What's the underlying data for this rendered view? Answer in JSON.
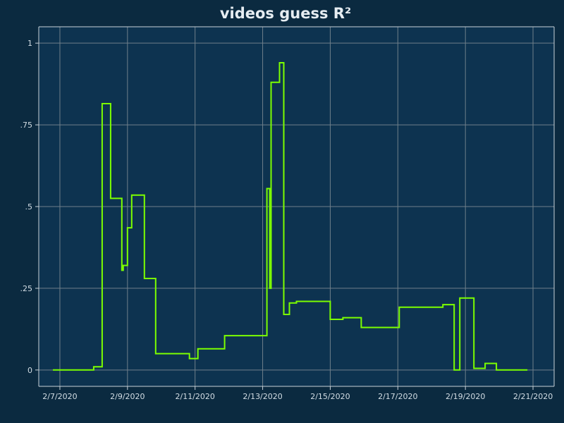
{
  "chart_data": {
    "type": "line",
    "title": "videos guess R²",
    "xlabel": "",
    "ylabel": "",
    "x_axis_type": "date",
    "x_ticks": [
      "2/7/2020",
      "2/9/2020",
      "2/11/2020",
      "2/13/2020",
      "2/15/2020",
      "2/17/2020",
      "2/19/2020",
      "2/21/2020"
    ],
    "y_ticks": [
      0,
      0.25,
      0.5,
      0.75,
      1
    ],
    "y_tick_labels": [
      "0",
      ".25",
      ".5",
      ".75",
      "1"
    ],
    "xlim": [
      "2020-02-06 09:00",
      "2020-02-21 15:00"
    ],
    "ylim": [
      -0.05,
      1.05
    ],
    "grid": true,
    "line_color": "#7cff00",
    "plot_background": "#0d3350",
    "page_background": "#0b2a40",
    "step": "post",
    "series": [
      {
        "name": "",
        "points": [
          [
            "2020-02-06 19:00",
            0
          ],
          [
            "2020-02-08 00:00",
            0.01
          ],
          [
            "2020-02-08 06:00",
            0.815
          ],
          [
            "2020-02-08 12:00",
            0.525
          ],
          [
            "2020-02-08 20:00",
            0.305
          ],
          [
            "2020-02-08 21:00",
            0.32
          ],
          [
            "2020-02-09 00:00",
            0.435
          ],
          [
            "2020-02-09 03:00",
            0.535
          ],
          [
            "2020-02-09 12:00",
            0.28
          ],
          [
            "2020-02-09 20:00",
            0.05
          ],
          [
            "2020-02-10 20:00",
            0.035
          ],
          [
            "2020-02-11 02:00",
            0.065
          ],
          [
            "2020-02-11 21:00",
            0.105
          ],
          [
            "2020-02-13 03:00",
            0.555
          ],
          [
            "2020-02-13 05:00",
            0.25
          ],
          [
            "2020-02-13 06:00",
            0.88
          ],
          [
            "2020-02-13 12:00",
            0.94
          ],
          [
            "2020-02-13 15:00",
            0.17
          ],
          [
            "2020-02-13 19:00",
            0.205
          ],
          [
            "2020-02-14 00:00",
            0.21
          ],
          [
            "2020-02-15 00:00",
            0.155
          ],
          [
            "2020-02-15 09:00",
            0.16
          ],
          [
            "2020-02-15 22:00",
            0.13
          ],
          [
            "2020-02-17 01:00",
            0.192
          ],
          [
            "2020-02-18 08:00",
            0.2
          ],
          [
            "2020-02-18 16:00",
            0
          ],
          [
            "2020-02-18 20:00",
            0.22
          ],
          [
            "2020-02-19 06:00",
            0.005
          ],
          [
            "2020-02-19 14:00",
            0.02
          ],
          [
            "2020-02-19 22:00",
            0
          ],
          [
            "2020-02-20 20:00",
            0
          ]
        ]
      }
    ]
  }
}
